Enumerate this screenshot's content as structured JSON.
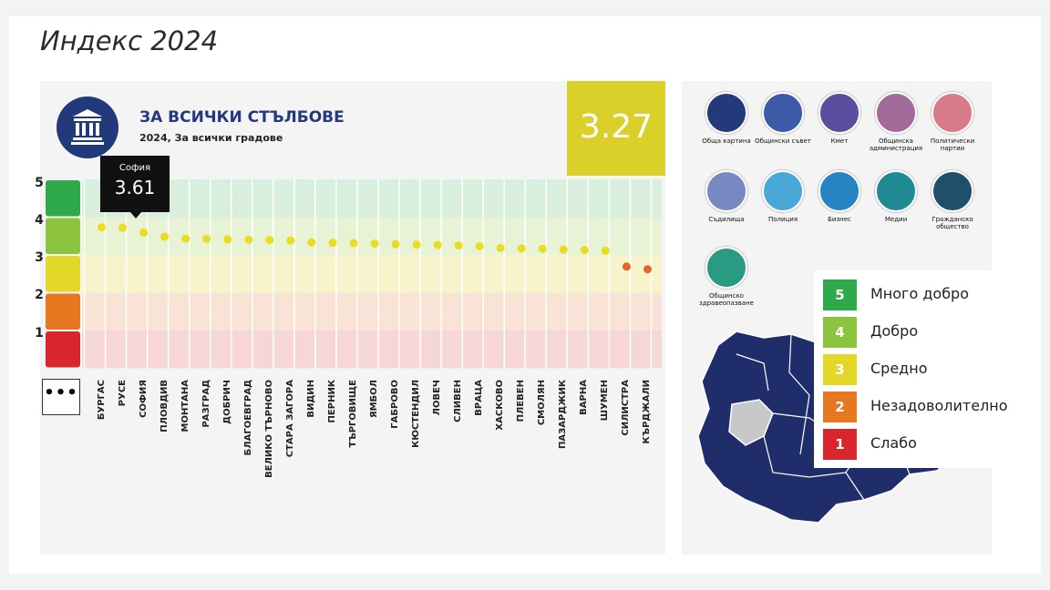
{
  "page_title": "Индекс 2024",
  "header": {
    "title": "ЗА ВСИЧКИ СТЪЛБОВЕ",
    "subtitle": "2024, За всички градове",
    "score": "3.27",
    "icon": "institution-icon"
  },
  "tooltip": {
    "city": "София",
    "value": "3.61"
  },
  "more_button": "•••",
  "colors": {
    "band5": "#2eaa4a",
    "band4": "#8dc43f",
    "band3": "#e3d827",
    "band2": "#e87722",
    "band1": "#d9262c",
    "dot_yellow": "#e8dd1e",
    "dot_orange": "#e0692a",
    "score_bg": "#dbd02a",
    "navy": "#233a7a"
  },
  "chart_data": {
    "type": "scatter",
    "title": "ЗА ВСИЧКИ СТЪЛБОВЕ",
    "ylim": [
      0,
      5
    ],
    "yticks": [
      "5",
      "4",
      "3",
      "2",
      "1"
    ],
    "categories": [
      "БУРГАС",
      "РУСЕ",
      "СОФИЯ",
      "ПЛОВДИВ",
      "МОНТАНА",
      "РАЗГРАД",
      "ДОБРИЧ",
      "БЛАГОЕВГРАД",
      "ВЕЛИКО ТЪРНОВО",
      "СТАРА ЗАГОРА",
      "ВИДИН",
      "ПЕРНИК",
      "ТЪРГОВИЩЕ",
      "ЯМБОЛ",
      "ГАБРОВО",
      "КЮСТЕНДИЛ",
      "ЛОВЕЧ",
      "СЛИВЕН",
      "ВРАЦА",
      "ХАСКОВО",
      "ПЛЕВЕН",
      "СМОЛЯН",
      "ПАЗАРДЖИК",
      "ВАРНА",
      "ШУМЕН",
      "СИЛИСТРА",
      "КЪРДЖАЛИ"
    ],
    "values": [
      3.75,
      3.74,
      3.61,
      3.5,
      3.45,
      3.44,
      3.43,
      3.42,
      3.41,
      3.4,
      3.35,
      3.34,
      3.33,
      3.32,
      3.3,
      3.29,
      3.28,
      3.27,
      3.25,
      3.2,
      3.19,
      3.18,
      3.16,
      3.15,
      3.13,
      2.71,
      2.64
    ],
    "highlight_index": 2,
    "grid": true
  },
  "pillars": [
    {
      "label": "Обща картина",
      "icon": "institution-icon",
      "color": "#233a7a"
    },
    {
      "label": "Общински съвет",
      "icon": "council-icon",
      "color": "#3d5aa8"
    },
    {
      "label": "Кмет",
      "icon": "mayor-icon",
      "color": "#5b4e9e"
    },
    {
      "label": "Общинска администрация",
      "icon": "administration-icon",
      "color": "#a36b9a"
    },
    {
      "label": "Политически партии",
      "icon": "parties-icon",
      "color": "#d77b8a"
    },
    {
      "label": "Съдилища",
      "icon": "gavel-icon",
      "color": "#7a88c2"
    },
    {
      "label": "Полиция",
      "icon": "police-icon",
      "color": "#4aa8d8"
    },
    {
      "label": "Бизнес",
      "icon": "briefcase-icon",
      "color": "#2784c2"
    },
    {
      "label": "Медии",
      "icon": "microphone-icon",
      "color": "#1f8a92"
    },
    {
      "label": "Гражданско общество",
      "icon": "people-icon",
      "color": "#1f4f6a"
    },
    {
      "label": "Общинско здравеопазване",
      "icon": "health-icon",
      "color": "#2a9a82"
    }
  ],
  "legend": [
    {
      "num": "5",
      "label": "Много добро",
      "color": "#2eaa4a"
    },
    {
      "num": "4",
      "label": "Добро",
      "color": "#8dc43f"
    },
    {
      "num": "3",
      "label": "Средно",
      "color": "#e3d827"
    },
    {
      "num": "2",
      "label": "Незадоволително",
      "color": "#e87722"
    },
    {
      "num": "1",
      "label": "Слабо",
      "color": "#d9262c"
    }
  ]
}
